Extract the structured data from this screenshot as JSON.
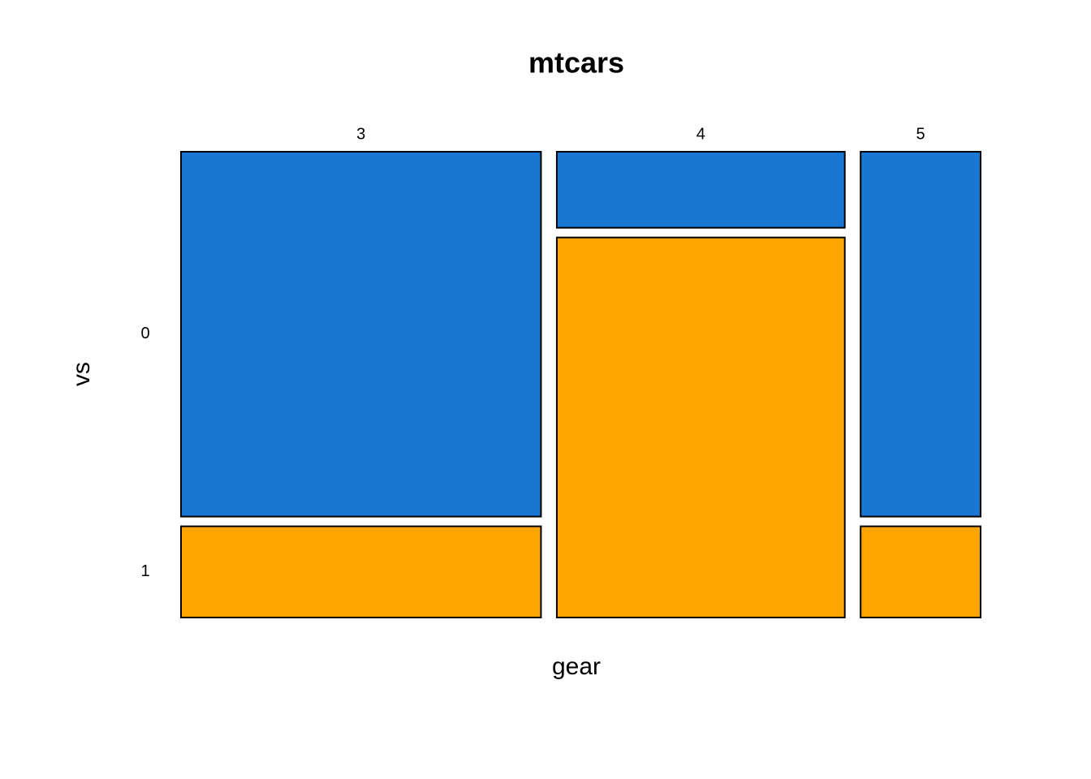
{
  "chart_data": {
    "type": "mosaic",
    "title": "mtcars",
    "x_label": "gear",
    "y_label": "vs",
    "categories": [
      "3",
      "4",
      "5"
    ],
    "series": [
      {
        "name": "0",
        "color": "#1976d2",
        "values": [
          12,
          2,
          4
        ]
      },
      {
        "name": "1",
        "color": "#ffa500",
        "values": [
          3,
          10,
          1
        ]
      }
    ]
  }
}
